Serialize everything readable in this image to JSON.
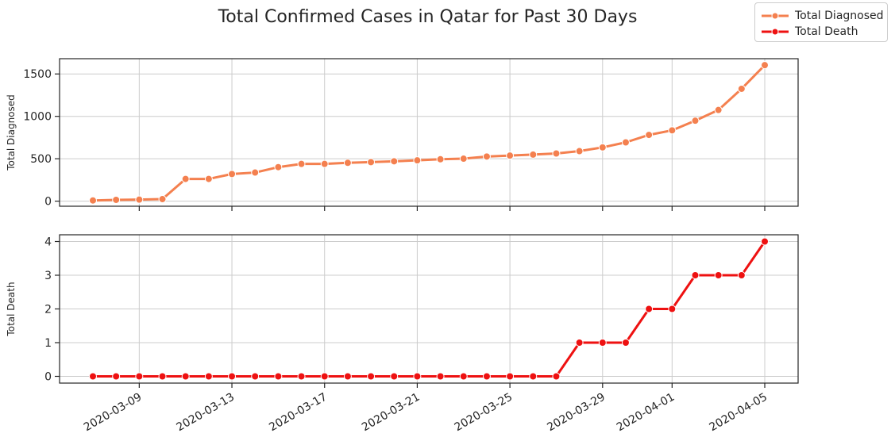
{
  "chart_data": {
    "title": "Total Confirmed Cases in Qatar for Past 30 Days",
    "type": "line",
    "x": [
      "2020-03-07",
      "2020-03-08",
      "2020-03-09",
      "2020-03-10",
      "2020-03-11",
      "2020-03-12",
      "2020-03-13",
      "2020-03-14",
      "2020-03-15",
      "2020-03-16",
      "2020-03-17",
      "2020-03-18",
      "2020-03-19",
      "2020-03-20",
      "2020-03-21",
      "2020-03-22",
      "2020-03-23",
      "2020-03-24",
      "2020-03-25",
      "2020-03-26",
      "2020-03-27",
      "2020-03-28",
      "2020-03-29",
      "2020-03-30",
      "2020-03-31",
      "2020-04-01",
      "2020-04-02",
      "2020-04-03",
      "2020-04-04",
      "2020-04-05"
    ],
    "x_tick_labels": [
      "2020-03-09",
      "2020-03-13",
      "2020-03-17",
      "2020-03-21",
      "2020-03-25",
      "2020-03-29",
      "2020-04-01",
      "2020-04-05"
    ],
    "legend": {
      "placement": "top-right",
      "entries": [
        "Total Diagnosed",
        "Total Death"
      ]
    },
    "grid": true,
    "subplots": [
      {
        "ylabel": "Total Diagnosed",
        "ylim": [
          -60,
          1680
        ],
        "yticks": [
          0,
          500,
          1000,
          1500
        ],
        "series": [
          {
            "name": "Total Diagnosed",
            "color": "#f4804f",
            "values": [
              8,
              15,
              18,
              24,
              262,
              262,
              320,
              337,
              401,
              439,
              439,
              452,
              460,
              470,
              481,
              494,
              501,
              526,
              537,
              549,
              562,
              590,
              634,
              693,
              781,
              835,
              949,
              1075,
              1325,
              1604
            ]
          }
        ]
      },
      {
        "ylabel": "Total Death",
        "ylim": [
          -0.2,
          4.2
        ],
        "yticks": [
          0,
          1,
          2,
          3,
          4
        ],
        "series": [
          {
            "name": "Total Death",
            "color": "#ee1111",
            "values": [
              0,
              0,
              0,
              0,
              0,
              0,
              0,
              0,
              0,
              0,
              0,
              0,
              0,
              0,
              0,
              0,
              0,
              0,
              0,
              0,
              0,
              1,
              1,
              1,
              2,
              2,
              3,
              3,
              3,
              4
            ]
          }
        ]
      }
    ]
  }
}
